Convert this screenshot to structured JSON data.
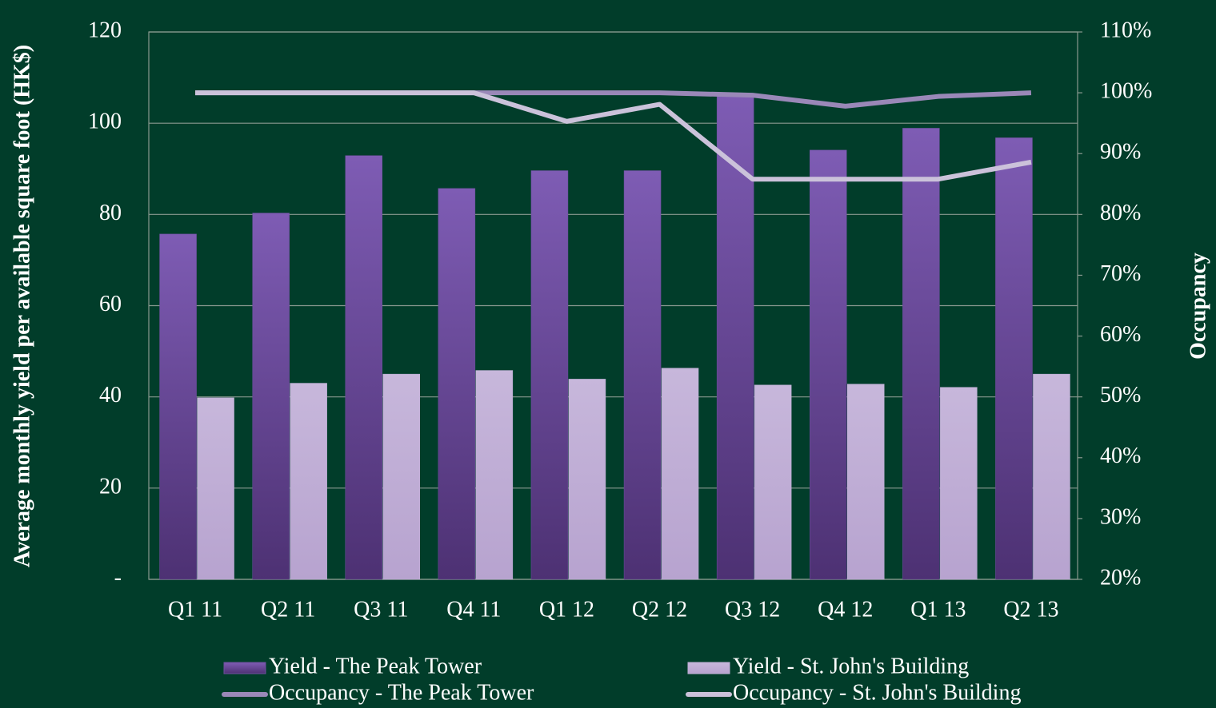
{
  "chart_data": {
    "type": "bar",
    "categories": [
      "Q1 11",
      "Q2 11",
      "Q3 11",
      "Q4 11",
      "Q1 12",
      "Q2 12",
      "Q3 12",
      "Q4 12",
      "Q1 13",
      "Q2 13"
    ],
    "y_label": "Average monthly yield per available square foot (HK$)",
    "y2_label": "Occupancy",
    "ylim": [
      0,
      120
    ],
    "yticks": [
      {
        "value": 0,
        "label": "-"
      },
      20,
      40,
      60,
      80,
      100,
      120
    ],
    "y2lim": [
      20,
      110
    ],
    "y2ticks": [
      {
        "value": 20,
        "label": "20%"
      },
      {
        "value": 30,
        "label": "30%"
      },
      {
        "value": 40,
        "label": "40%"
      },
      {
        "value": 50,
        "label": "50%"
      },
      {
        "value": 60,
        "label": "60%"
      },
      {
        "value": 70,
        "label": "70%"
      },
      {
        "value": 80,
        "label": "80%"
      },
      {
        "value": 90,
        "label": "90%"
      },
      {
        "value": 100,
        "label": "100%"
      },
      {
        "value": 110,
        "label": "110%"
      }
    ],
    "grid": true,
    "legend": "bottom",
    "series": [
      {
        "name": "Yield - The Peak Tower",
        "type": "bar",
        "color": "#6f4f9e",
        "values": [
          75.7,
          80.3,
          92.9,
          85.7,
          89.6,
          89.6,
          106.5,
          94.1,
          98.9,
          96.8
        ]
      },
      {
        "name": "Yield - St. John's Building",
        "type": "bar",
        "color": "#c0aed6",
        "values": [
          39.8,
          43.0,
          45.0,
          45.8,
          43.9,
          46.3,
          42.6,
          42.8,
          42.1,
          45.0
        ]
      },
      {
        "name": "Occupancy - The Peak Tower",
        "type": "line",
        "axis": "y2",
        "color": "#9a88b8",
        "values": [
          100,
          100,
          100,
          100,
          100,
          100,
          99.6,
          97.8,
          99.4,
          100
        ]
      },
      {
        "name": "Occupancy - St. John's Building",
        "type": "line",
        "axis": "y2",
        "color": "#cbc2da",
        "values": [
          100,
          100,
          100,
          100,
          95.3,
          98.1,
          85.8,
          85.8,
          85.8,
          88.6
        ]
      }
    ]
  }
}
